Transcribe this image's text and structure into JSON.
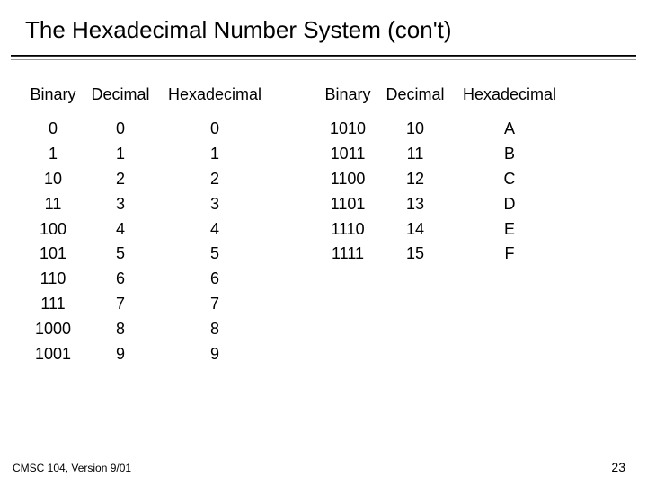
{
  "title": "The Hexadecimal Number System (con't)",
  "headers": {
    "binary": "Binary",
    "decimal": "Decimal",
    "hex": "Hexadecimal"
  },
  "left_table": {
    "rows": [
      {
        "bin": "0",
        "dec": "0",
        "hex": "0"
      },
      {
        "bin": "1",
        "dec": "1",
        "hex": "1"
      },
      {
        "bin": "10",
        "dec": "2",
        "hex": "2"
      },
      {
        "bin": "11",
        "dec": "3",
        "hex": "3"
      },
      {
        "bin": "100",
        "dec": "4",
        "hex": "4"
      },
      {
        "bin": "101",
        "dec": "5",
        "hex": "5"
      },
      {
        "bin": "110",
        "dec": "6",
        "hex": "6"
      },
      {
        "bin": "111",
        "dec": "7",
        "hex": "7"
      },
      {
        "bin": "1000",
        "dec": "8",
        "hex": "8"
      },
      {
        "bin": "1001",
        "dec": "9",
        "hex": "9"
      }
    ]
  },
  "right_table": {
    "rows": [
      {
        "bin": "1010",
        "dec": "10",
        "hex": "A"
      },
      {
        "bin": "1011",
        "dec": "11",
        "hex": "B"
      },
      {
        "bin": "1100",
        "dec": "12",
        "hex": "C"
      },
      {
        "bin": "1101",
        "dec": "13",
        "hex": "D"
      },
      {
        "bin": "1110",
        "dec": "14",
        "hex": "E"
      },
      {
        "bin": "1111",
        "dec": "15",
        "hex": "F"
      }
    ]
  },
  "footer": {
    "left": "CMSC 104, Version 9/01",
    "page": "23"
  },
  "colors": {
    "background": "#ffffff",
    "text": "#000000",
    "divider_dark": "#000000",
    "divider_light": "#999999"
  },
  "typography": {
    "title_fontsize": 26,
    "body_fontsize": 18,
    "footer_left_fontsize": 12,
    "footer_right_fontsize": 14,
    "font_family": "Arial"
  }
}
